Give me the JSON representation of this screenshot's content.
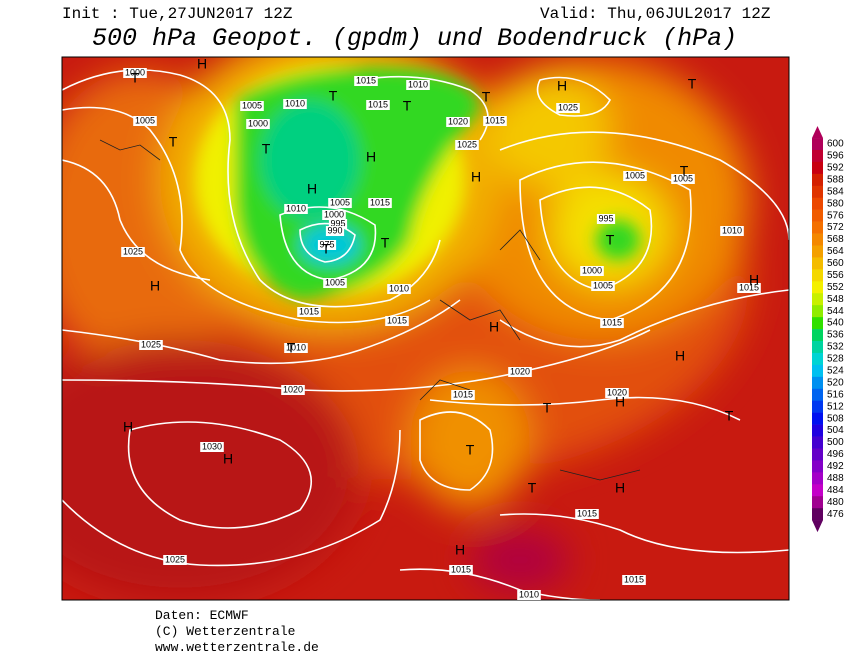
{
  "header": {
    "init": "Init : Tue,27JUN2017 12Z",
    "valid": "Valid: Thu,06JUL2017 12Z",
    "title": "500 hPa Geopot. (gpdm) und Bodendruck (hPa)"
  },
  "map": {
    "contour_labels": [
      "1000",
      "1005",
      "1005",
      "1010",
      "1000",
      "1015",
      "1015",
      "1010",
      "1020",
      "1015",
      "1025",
      "1025",
      "1005",
      "1005",
      "1010",
      "1005",
      "1015",
      "1000",
      "995",
      "990",
      "975",
      "995",
      "1010",
      "1025",
      "1005",
      "1010",
      "1015",
      "1015",
      "1000",
      "1005",
      "1015",
      "1015",
      "1025",
      "1010",
      "1020",
      "1020",
      "1015",
      "1020",
      "1030",
      "1015",
      "1025",
      "1015",
      "1010",
      "1015"
    ],
    "pressure_systems": [
      "T",
      "H",
      "T",
      "T",
      "T",
      "T",
      "H",
      "H",
      "T",
      "T",
      "T",
      "H",
      "T",
      "H",
      "T",
      "T",
      "H",
      "H",
      "T",
      "H",
      "H",
      "T",
      "H",
      "T",
      "H",
      "H",
      "T",
      "T",
      "H",
      "H"
    ]
  },
  "colorbar": {
    "ticks": [
      600,
      596,
      592,
      588,
      584,
      580,
      576,
      572,
      568,
      564,
      560,
      556,
      552,
      548,
      544,
      540,
      536,
      532,
      528,
      524,
      520,
      516,
      512,
      508,
      504,
      500,
      496,
      492,
      488,
      484,
      480,
      476
    ],
    "colors": [
      "#b0005a",
      "#c00030",
      "#c80010",
      "#d42000",
      "#e03400",
      "#ec4800",
      "#f05c00",
      "#f47000",
      "#f48800",
      "#f4a000",
      "#f4bc00",
      "#f4d800",
      "#f4f000",
      "#c8f000",
      "#90ec00",
      "#30e000",
      "#00d460",
      "#00d4a0",
      "#00d4d4",
      "#00c0f0",
      "#0090f0",
      "#0064f0",
      "#0038f0",
      "#0010f0",
      "#2000e0",
      "#4400d0",
      "#6400c8",
      "#8400c8",
      "#a400c8",
      "#c400c8",
      "#a00090",
      "#600060"
    ]
  },
  "footer": {
    "line1": "Daten: ECMWF",
    "line2": "(C) Wetterzentrale",
    "line3": "www.wetterzentrale.de"
  }
}
